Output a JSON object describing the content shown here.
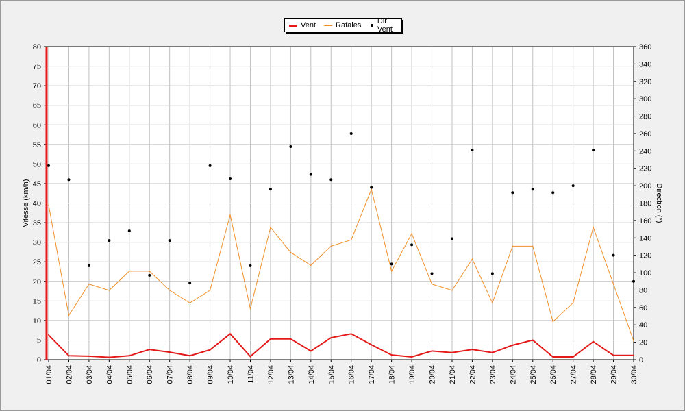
{
  "legend": {
    "vent": "Vent",
    "rafales": "Rafales",
    "dir": "Dir Vent"
  },
  "colors": {
    "vent": "#e41a1a",
    "rafales": "#f0902a",
    "dir": "#000000",
    "grid": "#c0c0c0",
    "plot_bg": "#ffffff",
    "frame_bg": "#f0f0f0"
  },
  "chart_data": {
    "type": "line",
    "title": "",
    "xlabel": "",
    "ylabel": "Vitesse (km/h)",
    "y2label": "Direction (°)",
    "ylim": [
      0,
      80
    ],
    "y2lim": [
      0,
      360
    ],
    "grid": true,
    "legend_position": "top-center",
    "categories": [
      "01/04",
      "02/04",
      "03/04",
      "04/04",
      "05/04",
      "06/04",
      "07/04",
      "08/04",
      "09/04",
      "10/04",
      "11/04",
      "12/04",
      "13/04",
      "14/04",
      "15/04",
      "16/04",
      "17/04",
      "18/04",
      "19/04",
      "20/04",
      "21/04",
      "22/04",
      "23/04",
      "24/04",
      "25/04",
      "26/04",
      "27/04",
      "28/04",
      "29/04",
      "30/04"
    ],
    "yticks": [
      "0",
      "5",
      "10",
      "15",
      "20",
      "25",
      "30",
      "35",
      "40",
      "45",
      "50",
      "55",
      "60",
      "65",
      "70",
      "75",
      "80"
    ],
    "y2ticks": [
      "0",
      "20",
      "40",
      "60",
      "80",
      "100",
      "120",
      "140",
      "160",
      "180",
      "200",
      "220",
      "240",
      "260",
      "280",
      "300",
      "320",
      "340",
      "360"
    ],
    "series": [
      {
        "name": "Vent",
        "axis": "left",
        "values": [
          6.3,
          1.0,
          0.9,
          0.6,
          1.0,
          2.6,
          1.9,
          1.0,
          2.5,
          6.6,
          0.8,
          5.3,
          5.3,
          2.2,
          5.6,
          6.6,
          3.8,
          1.2,
          0.7,
          2.2,
          1.8,
          2.6,
          1.8,
          3.7,
          5.0,
          0.7,
          0.7,
          4.6,
          1.1,
          1.1
        ]
      },
      {
        "name": "Rafales",
        "axis": "left",
        "values": [
          39.5,
          11.3,
          19.3,
          17.7,
          22.6,
          22.6,
          17.7,
          14.5,
          17.7,
          37.0,
          13.0,
          33.8,
          27.4,
          24.1,
          29.0,
          30.6,
          43.5,
          22.6,
          32.2,
          19.3,
          17.7,
          25.7,
          14.5,
          29.0,
          29.0,
          9.7,
          14.5,
          33.8,
          19.3,
          4.8
        ]
      },
      {
        "name": "Dir Vent",
        "axis": "right",
        "values": [
          223,
          207,
          108,
          137,
          148,
          97,
          137,
          88,
          223,
          208,
          108,
          196,
          245,
          213,
          207,
          260,
          198,
          110,
          132,
          99,
          139,
          241,
          99,
          192,
          196,
          192,
          200,
          241,
          120,
          90
        ]
      }
    ]
  }
}
